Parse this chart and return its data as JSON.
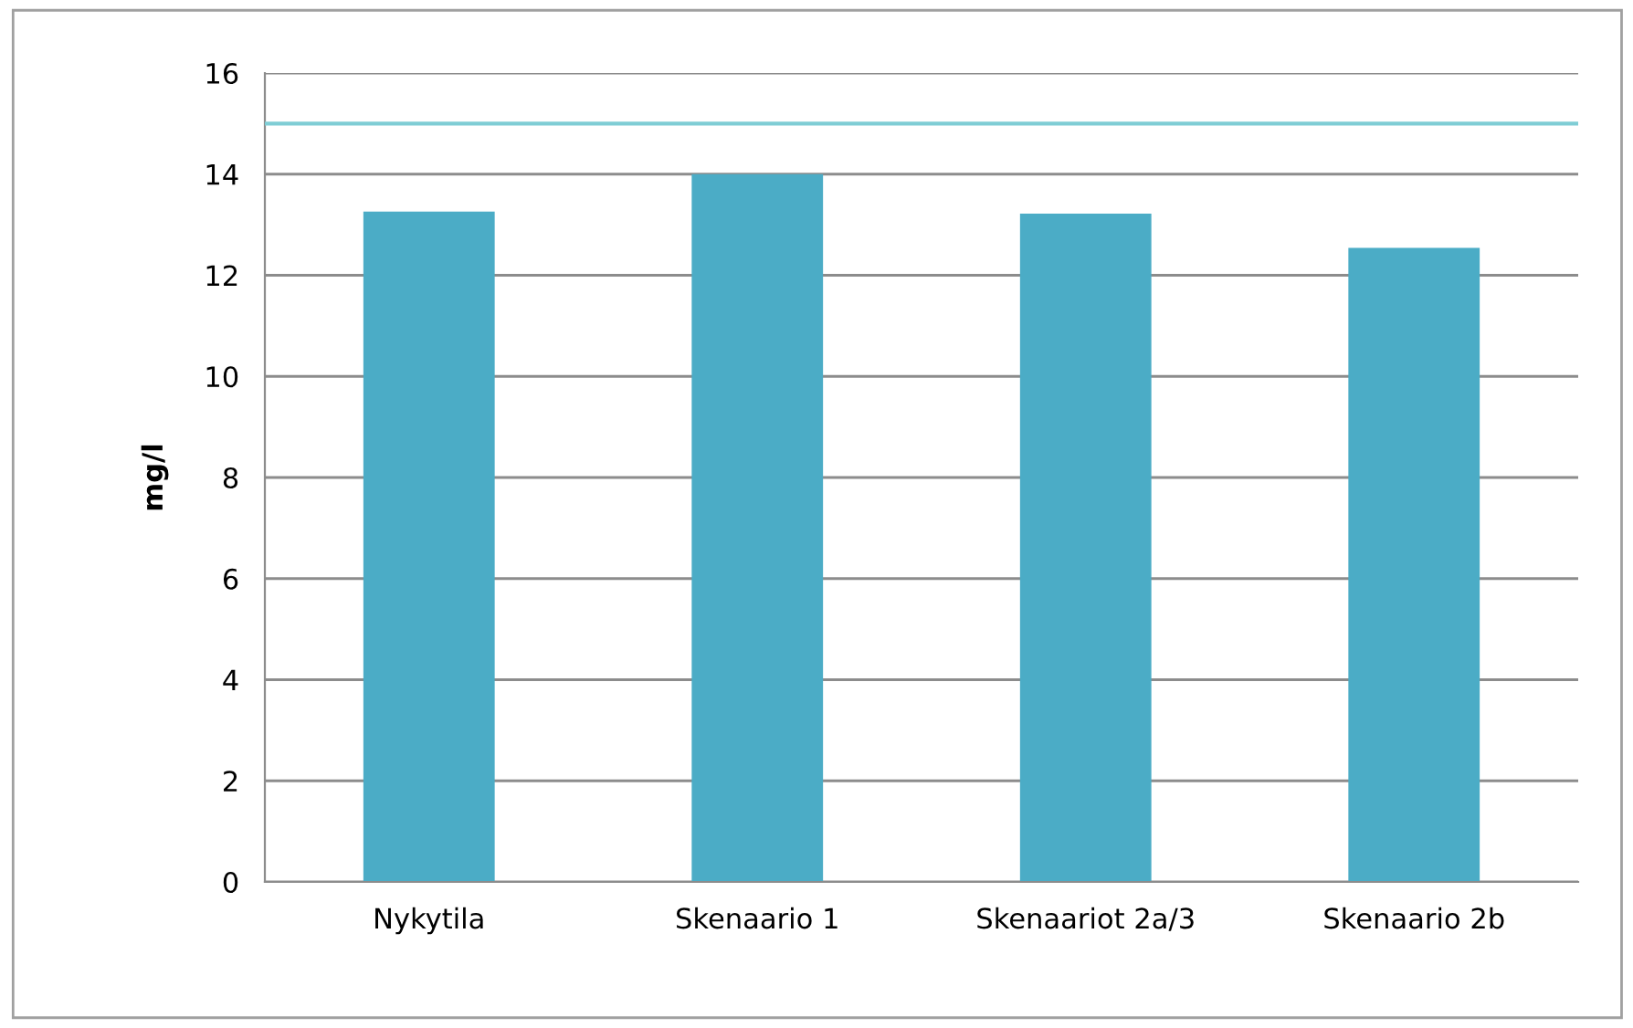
{
  "chart_data": {
    "type": "bar",
    "ylabel": "mg/l",
    "categories": [
      "Nykytila",
      "Skenaario 1",
      "Skenaariot 2a/3",
      "Skenaario 2b"
    ],
    "values": [
      13.26,
      14.0,
      13.22,
      12.54
    ],
    "color": "#4bacc6",
    "ylim": [
      0,
      16
    ],
    "yticks": [
      0,
      2,
      4,
      6,
      8,
      10,
      12,
      14,
      16
    ],
    "grid": "y",
    "ref_lines": [
      {
        "axis": "y",
        "value": 15,
        "color": "#7fcdd5",
        "line_style": "solid"
      }
    ]
  }
}
